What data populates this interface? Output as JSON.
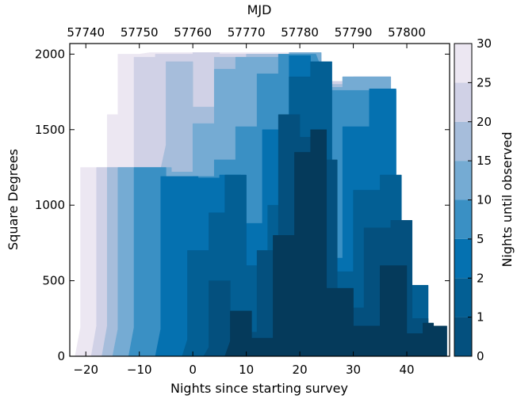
{
  "chart_data": {
    "type": "area",
    "xlabel": "Nights since starting survey",
    "ylabel": "Square Degrees",
    "top_xlabel": "MJD",
    "colorbar_label": "Nights until observed",
    "xlim": [
      -23,
      48
    ],
    "ylim": [
      0,
      2070
    ],
    "x_ticks": [
      -20,
      -10,
      0,
      10,
      20,
      30,
      40
    ],
    "y_ticks": [
      0,
      500,
      1000,
      1500,
      2000
    ],
    "top_ticks": [
      57740,
      57750,
      57760,
      57770,
      57780,
      57790,
      57800
    ],
    "mjd_offset": 57760,
    "colorbar_ticks": [
      "0",
      "1",
      "2",
      "5",
      "10",
      "15",
      "20",
      "25",
      "30"
    ],
    "colorbar_colors": [
      "#053a5b",
      "#04507e",
      "#035f94",
      "#0571b0",
      "#3a90c4",
      "#75abd3",
      "#a6bddb",
      "#d0d1e6",
      "#ece7f2"
    ],
    "series": [
      {
        "nights_until": 30,
        "x": [
          -22,
          -21,
          -21,
          -16,
          -16,
          -14,
          -14,
          -11,
          -10,
          -10,
          -8,
          -8,
          -6,
          -6,
          24,
          24,
          30,
          30,
          37,
          37
        ],
        "y": [
          0,
          190,
          1250,
          1250,
          1600,
          1600,
          2000,
          2000,
          2000,
          2000,
          2010,
          2010,
          2010,
          2010,
          2010,
          1820,
          1820,
          1850,
          1850,
          0
        ]
      },
      {
        "nights_until": 25,
        "x": [
          -19,
          -18,
          -18,
          -14,
          -14,
          -11,
          -11,
          -7,
          -7,
          0,
          0,
          5,
          5,
          24,
          24,
          30,
          30,
          37,
          37
        ],
        "y": [
          0,
          200,
          1250,
          1250,
          1250,
          1250,
          1980,
          1980,
          2000,
          2000,
          2010,
          2010,
          2000,
          2000,
          1820,
          1820,
          1850,
          1850,
          0
        ]
      },
      {
        "nights_until": 20,
        "x": [
          -17,
          -16,
          -16,
          -11,
          -11,
          -6,
          -5,
          -5,
          0,
          0,
          4,
          4,
          10,
          10,
          22,
          24,
          24,
          28,
          28,
          37,
          37
        ],
        "y": [
          0,
          200,
          1250,
          1250,
          1240,
          1240,
          1400,
          1950,
          1950,
          1650,
          1650,
          1980,
          1980,
          2000,
          2000,
          1970,
          1800,
          1800,
          1850,
          1850,
          0
        ]
      },
      {
        "nights_until": 15,
        "x": [
          -15,
          -14,
          -14,
          -9,
          -9,
          -4,
          -4,
          0,
          0,
          4,
          4,
          8,
          8,
          13,
          13,
          18,
          18,
          24,
          24,
          28,
          28,
          37,
          37
        ],
        "y": [
          0,
          180,
          1250,
          1250,
          1250,
          1250,
          1220,
          1220,
          1540,
          1540,
          1900,
          1900,
          1980,
          1980,
          1980,
          1980,
          2010,
          2010,
          1780,
          1780,
          1850,
          1850,
          0
        ]
      },
      {
        "nights_until": 10,
        "x": [
          -12,
          -11,
          -11,
          -5,
          -5,
          0,
          0,
          4,
          4,
          8,
          8,
          12,
          12,
          16,
          16,
          23,
          25,
          25,
          38,
          38
        ],
        "y": [
          0,
          190,
          1250,
          1250,
          1180,
          1180,
          1190,
          1190,
          1300,
          1300,
          1520,
          1520,
          1870,
          1870,
          2000,
          2000,
          1820,
          1760,
          1760,
          0
        ]
      },
      {
        "nights_until": 5,
        "x": [
          -7,
          -6,
          -6,
          -2,
          -2,
          1,
          1,
          5,
          5,
          9,
          9,
          13,
          13,
          18,
          18,
          22,
          22,
          25,
          25,
          28,
          28,
          33,
          33,
          38,
          38
        ],
        "y": [
          0,
          180,
          1190,
          1190,
          1190,
          1190,
          1180,
          1180,
          1200,
          1200,
          880,
          880,
          1500,
          1500,
          1990,
          1990,
          1820,
          1820,
          650,
          650,
          1520,
          1520,
          1770,
          1770,
          0
        ]
      },
      {
        "nights_until": 2,
        "x": [
          -2,
          -1,
          -1,
          3,
          3,
          6,
          6,
          10,
          10,
          14,
          14,
          18,
          18,
          22,
          22,
          26,
          26,
          30,
          30,
          35,
          35,
          39,
          39,
          44,
          44
        ],
        "y": [
          0,
          110,
          700,
          700,
          950,
          950,
          1200,
          1200,
          600,
          600,
          1000,
          1000,
          1850,
          1850,
          1950,
          1950,
          560,
          560,
          1100,
          1100,
          1200,
          1200,
          470,
          470,
          0
        ]
      },
      {
        "nights_until": 1,
        "x": [
          2,
          3,
          3,
          7,
          7,
          12,
          12,
          16,
          16,
          20,
          20,
          23,
          23,
          27,
          27,
          32,
          32,
          37,
          37,
          41,
          41,
          44,
          44,
          46,
          46
        ],
        "y": [
          0,
          60,
          500,
          500,
          160,
          160,
          700,
          700,
          1600,
          1600,
          1450,
          1450,
          1300,
          1300,
          320,
          320,
          850,
          850,
          900,
          900,
          250,
          250,
          120,
          120,
          0
        ]
      },
      {
        "nights_until": 0,
        "x": [
          6,
          7,
          7,
          11,
          11,
          15,
          15,
          19,
          19,
          22,
          22,
          25,
          25,
          30,
          30,
          35,
          35,
          40,
          40,
          43,
          43,
          45,
          45,
          47.5,
          47.5
        ],
        "y": [
          0,
          100,
          300,
          300,
          120,
          120,
          800,
          800,
          1350,
          1350,
          1500,
          1500,
          450,
          450,
          200,
          200,
          600,
          600,
          150,
          150,
          220,
          220,
          200,
          200,
          0
        ]
      }
    ]
  }
}
